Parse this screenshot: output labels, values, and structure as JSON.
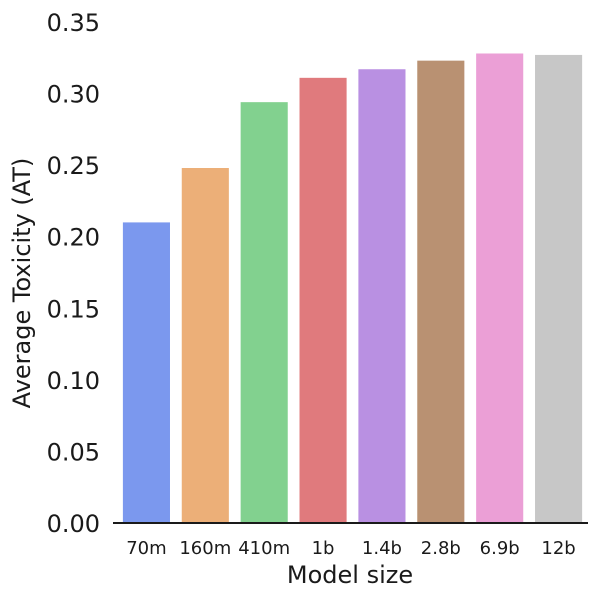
{
  "chart_data": {
    "type": "bar",
    "xlabel": "Model size",
    "ylabel": "Average Toxicity (AT)",
    "categories": [
      "70m",
      "160m",
      "410m",
      "1b",
      "1.4b",
      "2.8b",
      "6.9b",
      "12b"
    ],
    "values": [
      0.21,
      0.248,
      0.294,
      0.311,
      0.317,
      0.323,
      0.328,
      0.327
    ],
    "colors": [
      "#7b98ee",
      "#ecaf78",
      "#82d18f",
      "#e07a7d",
      "#b990e2",
      "#b99172",
      "#eb9fd6",
      "#c7c7c7"
    ],
    "ylim": [
      0,
      0.35
    ],
    "yticks": [
      "0.00",
      "0.05",
      "0.10",
      "0.15",
      "0.20",
      "0.25",
      "0.30",
      "0.35"
    ],
    "grid": false
  }
}
